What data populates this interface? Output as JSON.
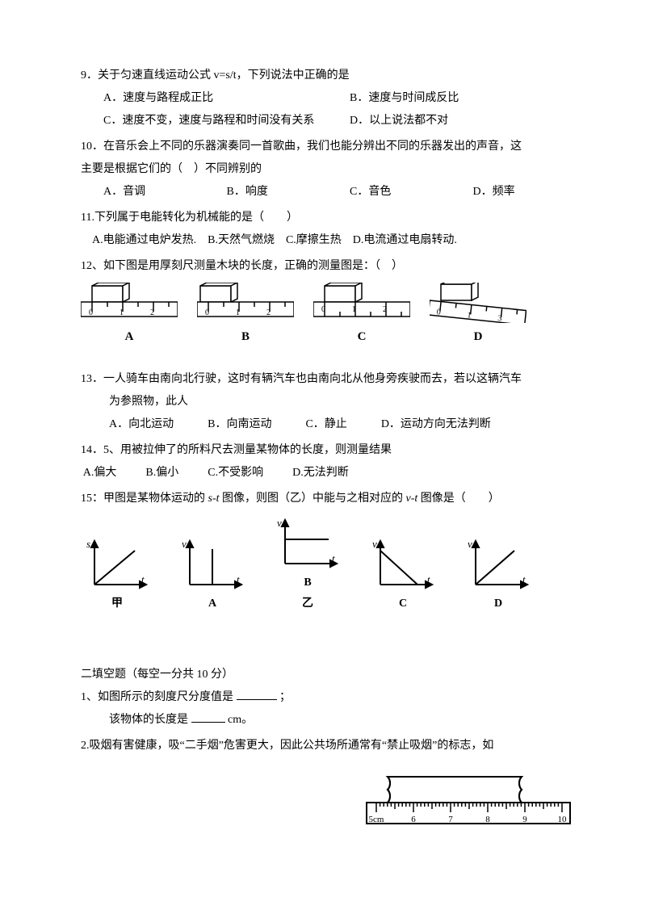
{
  "q9": {
    "stem": "9．关于匀速直线运动公式 v=s/t，下列说法中正确的是",
    "A": "A．速度与路程成正比",
    "B": "B．速度与时间成反比",
    "C": "C．速度不变，速度与路程和时间没有关系",
    "D": "D．以上说法都不对"
  },
  "q10": {
    "stem1": "10．在音乐会上不同的乐器演奏同一首歌曲，我们也能分辨出不同的乐器发出的声音，这",
    "stem2": "主要是根据它们的（　）不同辨别的",
    "A": "A．音调",
    "B": "B．响度",
    "C": "C．音色",
    "D": "D．频率"
  },
  "q11": {
    "stem": "11.下列属于电能转化为机械能的是（　　）",
    "opts": "　A.电能通过电炉发热.　B.天然气燃烧　C.摩擦生热　D.电流通过电扇转动."
  },
  "q12": {
    "stem": "12、如下图是用厚刻尺测量木块的长度，正确的测量图是：（　）",
    "labels": {
      "A": "A",
      "B": "B",
      "C": "C",
      "D": "D"
    },
    "ruler_color": "#000000",
    "block_fill": "#ffffff"
  },
  "q13": {
    "stem1": "13．一人骑车由南向北行驶，这时有辆汽车也由南向北从他身旁疾驶而去，若以这辆汽车",
    "stem2": "为参照物，此人",
    "A": "A．向北运动",
    "B": "B．向南运动",
    "C": "C．静止",
    "D": "D．运动方向无法判断"
  },
  "q14": {
    "stem": "14．5、用被拉伸了的所料尺去测量某物体的长度，则测量结果",
    "A": "A.偏大",
    "B": "B.偏小",
    "C": "C.不受影响",
    "D": "D.无法判断"
  },
  "q15": {
    "stem_parts": [
      "15：甲图是某物体运动的 ",
      "s",
      "-",
      "t",
      " 图像，则图（乙）中能与之相对应的 ",
      "v",
      "-",
      "t",
      " 图像是（　　）"
    ],
    "labels": {
      "jia": "甲",
      "A": "A",
      "B": "B",
      "yi": "乙",
      "C": "C",
      "D": "D"
    },
    "axis_s": "s",
    "axis_v": "v",
    "axis_t": "t",
    "line_color": "#000000"
  },
  "section2": {
    "title": "二填空题（每空一分共 10 分）",
    "q1a": "1、如图所示的刻度尺分度值是 ",
    "q1a_tail": " ；",
    "q1b": "该物体的长度是",
    "q1b_tail": "cm。",
    "q2": "2.吸烟有害健康，吸“二手烟”危害更大，因此公共场所通常有“禁止吸烟”的标志，如",
    "ruler": {
      "start_label": "5cm",
      "ticks": [
        "6",
        "7",
        "8",
        "9",
        "10"
      ],
      "start_val": 5,
      "end_val": 10,
      "line_color": "#000000"
    }
  }
}
